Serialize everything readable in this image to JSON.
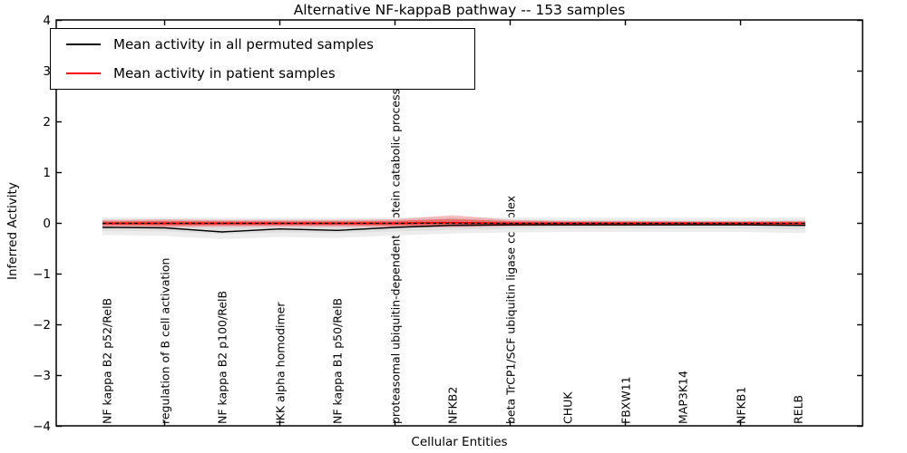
{
  "chart_data": {
    "type": "line",
    "title": "Alternative NF-kappaB pathway -- 153 samples",
    "xlabel": "Cellular Entities",
    "ylabel": "Inferred Activity",
    "ylim": [
      -4,
      4
    ],
    "yticks": [
      4,
      3,
      2,
      1,
      0,
      -1,
      -2,
      -3,
      -4
    ],
    "xtick_marks_at_category_indices": [
      1,
      3,
      5,
      7,
      9,
      11
    ],
    "grid": false,
    "legend_position": "upper left",
    "categories": [
      "NF kappa B2 p52/RelB",
      "regulation of B cell activation",
      "NF kappa B2 p100/RelB",
      "IKK alpha homodimer",
      "NF kappa B1 p50/RelB",
      "proteasomal ubiquitin-dependent protein catabolic process",
      "NFKB2",
      "beta TrCP1/SCF ubiquitin ligase complex",
      "CHUK",
      "FBXW11",
      "MAP3K14",
      "NFKB1",
      "RELB"
    ],
    "series": [
      {
        "name": "Mean activity in all permuted samples",
        "color": "#000000",
        "style": "solid",
        "values": [
          -0.08,
          -0.09,
          -0.17,
          -0.11,
          -0.14,
          -0.08,
          -0.04,
          -0.03,
          -0.03,
          -0.03,
          -0.03,
          -0.03,
          -0.04
        ]
      },
      {
        "name": "Mean activity in patient samples",
        "color": "#ff0000",
        "style": "solid",
        "values": [
          0,
          0,
          0,
          0,
          0,
          0,
          0.01,
          0,
          0,
          0,
          0,
          0,
          0
        ]
      }
    ],
    "zero_reference_line": {
      "y": 0,
      "style": "dashed",
      "color": "#000000"
    },
    "bands": {
      "permuted_outer": {
        "color": "#ededed",
        "upper": [
          0.12,
          0.12,
          0.11,
          0.11,
          0.11,
          0.12,
          0.12,
          0.12,
          0.11,
          0.11,
          0.11,
          0.11,
          0.12
        ],
        "lower": [
          -0.23,
          -0.25,
          -0.31,
          -0.27,
          -0.29,
          -0.24,
          -0.2,
          -0.18,
          -0.17,
          -0.17,
          -0.17,
          -0.17,
          -0.19
        ]
      },
      "permuted_inner": {
        "color": "#e0e0e0",
        "upper": [
          0.07,
          0.07,
          0.06,
          0.06,
          0.06,
          0.07,
          0.07,
          0.07,
          0.06,
          0.06,
          0.06,
          0.06,
          0.07
        ],
        "lower": [
          -0.15,
          -0.16,
          -0.21,
          -0.18,
          -0.19,
          -0.16,
          -0.13,
          -0.11,
          -0.1,
          -0.1,
          -0.1,
          -0.1,
          -0.12
        ]
      },
      "patient_outer": {
        "color": "rgba(240,60,60,0.30)",
        "upper": [
          0.07,
          0.08,
          0.07,
          0.07,
          0.07,
          0.08,
          0.16,
          0.07,
          0.05,
          0.05,
          0.04,
          0.04,
          0.05
        ],
        "lower": [
          -0.07,
          -0.08,
          -0.07,
          -0.07,
          -0.07,
          -0.08,
          -0.08,
          -0.06,
          -0.05,
          -0.05,
          -0.04,
          -0.04,
          -0.05
        ]
      },
      "patient_inner": {
        "color": "rgba(235,35,35,0.45)",
        "upper": [
          0.04,
          0.05,
          0.04,
          0.04,
          0.04,
          0.05,
          0.09,
          0.04,
          0.03,
          0.03,
          0.03,
          0.03,
          0.03
        ],
        "lower": [
          -0.04,
          -0.05,
          -0.04,
          -0.04,
          -0.04,
          -0.05,
          -0.05,
          -0.04,
          -0.03,
          -0.03,
          -0.03,
          -0.03,
          -0.03
        ]
      }
    }
  }
}
